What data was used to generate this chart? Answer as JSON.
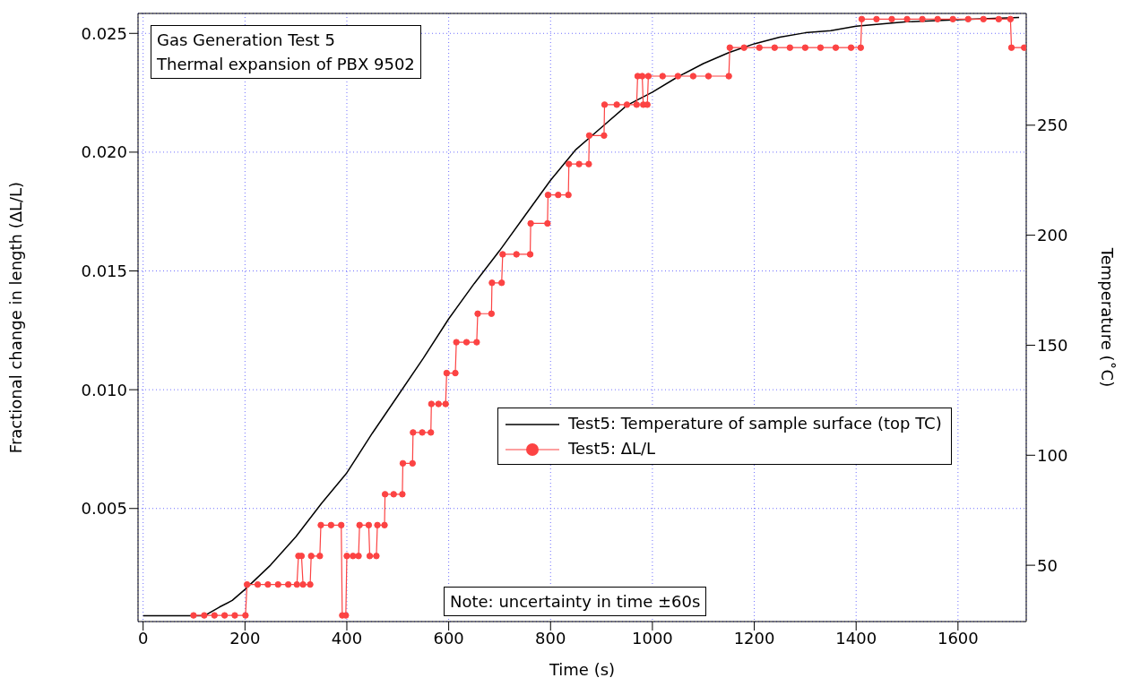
{
  "chart_data": {
    "type": "line",
    "title": "Gas Generation Test 5",
    "subtitle": "Thermal expansion of PBX 9502",
    "xlabel": "Time (s)",
    "ylabel": "Fractional change in length (ΔL/L)",
    "y2label": "Temperature (˚C)",
    "annotations": [
      "Note: uncertainty in time ±60s"
    ],
    "xlim": [
      -10,
      1734
    ],
    "xticks": [
      0,
      200,
      400,
      600,
      800,
      1000,
      1200,
      1400,
      1600
    ],
    "ylim": [
      0.00024,
      0.02584
    ],
    "yticks": [
      {
        "value": 0.005,
        "label": "0.005"
      },
      {
        "value": 0.01,
        "label": "0.010"
      },
      {
        "value": 0.015,
        "label": "0.015"
      },
      {
        "value": 0.02,
        "label": "0.020"
      },
      {
        "value": 0.025,
        "label": "0.025"
      }
    ],
    "y2lim": [
      24.4,
      300.8
    ],
    "y2ticks": [
      50,
      100,
      150,
      200,
      250
    ],
    "grid": true,
    "legend": "right",
    "line_style": "solid",
    "series": [
      {
        "name": "Test5:  Temperature of sample surface (top TC)",
        "color": "#000000",
        "axis": "y2",
        "marker": "none",
        "x": [
          0,
          50,
          100,
          120,
          150,
          175,
          200,
          250,
          300,
          350,
          400,
          450,
          500,
          550,
          600,
          650,
          700,
          750,
          800,
          850,
          900,
          950,
          1000,
          1050,
          1100,
          1150,
          1200,
          1250,
          1300,
          1350,
          1400,
          1500,
          1600,
          1720
        ],
        "values": [
          27,
          27,
          27,
          27,
          31,
          34,
          39,
          50,
          63,
          78,
          92,
          110,
          127,
          144,
          162,
          178,
          193,
          209,
          225,
          239,
          249,
          259,
          265,
          272,
          278,
          283,
          287,
          290,
          292,
          293,
          295,
          297,
          298,
          299
        ]
      },
      {
        "name": "Test5: ΔL/L",
        "color": "#fc4343",
        "marker": "circle",
        "x": [
          99,
          120,
          140,
          160,
          180,
          201,
          204,
          225,
          245,
          265,
          285,
          302,
          305,
          311,
          314,
          328,
          330,
          347,
          349,
          369,
          389,
          391,
          398,
          400,
          412,
          423,
          425,
          443,
          445,
          458,
          460,
          474,
          475,
          492,
          509,
          510,
          529,
          530,
          548,
          565,
          566,
          580,
          594,
          596,
          613,
          615,
          635,
          655,
          657,
          684,
          685,
          704,
          706,
          733,
          760,
          761,
          794,
          795,
          815,
          835,
          836,
          856,
          875,
          876,
          905,
          906,
          930,
          950,
          969,
          971,
          980,
          982,
          990,
          992,
          1020,
          1050,
          1080,
          1110,
          1150,
          1152,
          1180,
          1210,
          1240,
          1270,
          1300,
          1330,
          1360,
          1390,
          1409,
          1411,
          1440,
          1470,
          1500,
          1530,
          1560,
          1590,
          1620,
          1650,
          1680,
          1703,
          1705,
          1730
        ],
        "values": [
          0.0005,
          0.0005,
          0.0005,
          0.0005,
          0.0005,
          0.0005,
          0.0018,
          0.0018,
          0.0018,
          0.0018,
          0.0018,
          0.0018,
          0.003,
          0.003,
          0.0018,
          0.0018,
          0.003,
          0.003,
          0.0043,
          0.0043,
          0.0043,
          0.0005,
          0.0005,
          0.003,
          0.003,
          0.003,
          0.0043,
          0.0043,
          0.003,
          0.003,
          0.0043,
          0.0043,
          0.0056,
          0.0056,
          0.0056,
          0.0069,
          0.0069,
          0.0082,
          0.0082,
          0.0082,
          0.0094,
          0.0094,
          0.0094,
          0.0107,
          0.0107,
          0.012,
          0.012,
          0.012,
          0.0132,
          0.0132,
          0.0145,
          0.0145,
          0.0157,
          0.0157,
          0.0157,
          0.017,
          0.017,
          0.0182,
          0.0182,
          0.0182,
          0.0195,
          0.0195,
          0.0195,
          0.0207,
          0.0207,
          0.022,
          0.022,
          0.022,
          0.022,
          0.0232,
          0.0232,
          0.022,
          0.022,
          0.0232,
          0.0232,
          0.0232,
          0.0232,
          0.0232,
          0.0232,
          0.0244,
          0.0244,
          0.0244,
          0.0244,
          0.0244,
          0.0244,
          0.0244,
          0.0244,
          0.0244,
          0.0244,
          0.0256,
          0.0256,
          0.0256,
          0.0256,
          0.0256,
          0.0256,
          0.0256,
          0.0256,
          0.0256,
          0.0256,
          0.0256,
          0.0244,
          0.0244
        ]
      }
    ]
  }
}
